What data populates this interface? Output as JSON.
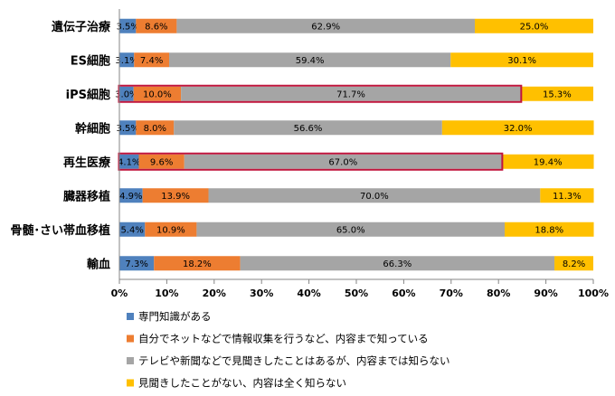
{
  "chart_data": {
    "type": "bar",
    "orientation": "horizontal",
    "stacked": true,
    "percent_stacked": true,
    "categories": [
      "遺伝子治療",
      "ES細胞",
      "iPS細胞",
      "幹細胞",
      "再生医療",
      "臓器移植",
      "骨髄･さい帯血移植",
      "輸血"
    ],
    "series": [
      {
        "name": "専門知識がある",
        "color": "#4f81bd",
        "values": [
          3.5,
          3.1,
          3.0,
          3.5,
          4.1,
          4.9,
          5.4,
          7.3
        ],
        "labels": [
          "3.5%",
          "3.1%",
          "3.0%",
          "3.5%",
          "4.1%",
          "4.9%",
          "5.4%",
          "7.3%"
        ]
      },
      {
        "name": "自分でネットなどで情報収集を行うなど、内容まで知っている",
        "color": "#ed7d31",
        "values": [
          8.6,
          7.4,
          10.0,
          8.0,
          9.6,
          13.9,
          10.9,
          18.2
        ],
        "labels": [
          "8.6%",
          "7.4%",
          "10.0%",
          "8.0%",
          "9.6%",
          "13.9%",
          "10.9%",
          "18.2%"
        ]
      },
      {
        "name": "テレビや新聞などで見聞きしたことはあるが、内容までは知らない",
        "color": "#a5a5a5",
        "values": [
          62.9,
          59.4,
          71.7,
          56.6,
          67.0,
          70.0,
          65.0,
          66.3
        ],
        "labels": [
          "62.9%",
          "59.4%",
          "71.7%",
          "56.6%",
          "67.0%",
          "70.0%",
          "65.0%",
          "66.3%"
        ]
      },
      {
        "name": "見聞きしたことがない、内容は全く知らない",
        "color": "#ffc000",
        "values": [
          25.0,
          30.1,
          15.3,
          32.0,
          19.4,
          11.3,
          18.8,
          8.2
        ],
        "labels": [
          "25.0%",
          "30.1%",
          "15.3%",
          "32.0%",
          "19.4%",
          "11.3%",
          "18.8%",
          "8.2%"
        ]
      }
    ],
    "xlim": [
      0,
      100
    ],
    "x_ticks": [
      "0%",
      "10%",
      "20%",
      "30%",
      "40%",
      "50%",
      "60%",
      "70%",
      "80%",
      "90%",
      "100%"
    ],
    "grid": false,
    "legend_position": "bottom",
    "highlighted_categories": [
      "iPS細胞",
      "再生医療"
    ],
    "highlight_color": "#c0143c"
  }
}
